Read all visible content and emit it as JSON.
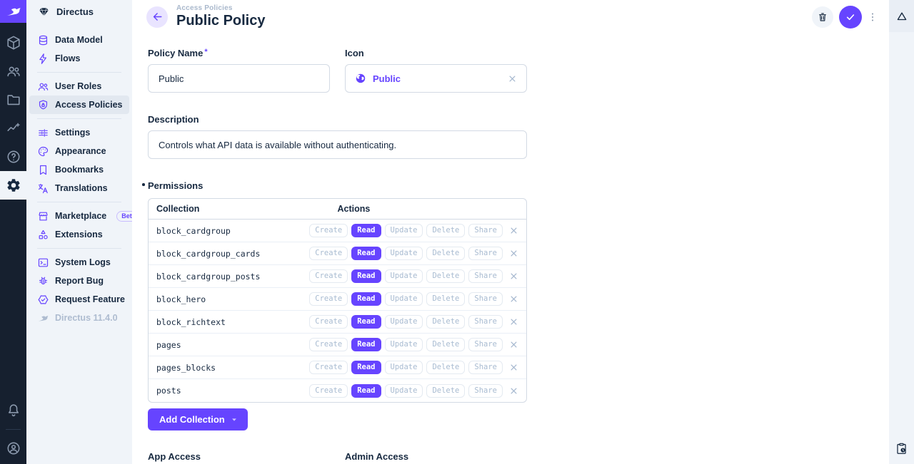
{
  "colors": {
    "accent": "#6644ff",
    "module_bar_bg": "#16202f",
    "sidebar_bg": "#f0f4f9",
    "selected_item_bg": "#e2e8f0",
    "text_dark": "#172940",
    "text_muted": "#a2b5cd",
    "border": "#d3dae4"
  },
  "module_bar": {
    "icons": [
      "directus-rabbit-logo",
      "content-cube",
      "user-directory",
      "file-library",
      "insights",
      "help",
      "settings-gear",
      "notifications-bell",
      "account-circle"
    ]
  },
  "sidebar": {
    "project_name": "Directus",
    "items": [
      {
        "label": "Data Model"
      },
      {
        "label": "Flows"
      },
      {
        "label": "User Roles"
      },
      {
        "label": "Access Policies",
        "selected": true
      },
      {
        "label": "Settings"
      },
      {
        "label": "Appearance"
      },
      {
        "label": "Bookmarks"
      },
      {
        "label": "Translations"
      },
      {
        "label": "Marketplace",
        "badge": "Beta"
      },
      {
        "label": "Extensions"
      },
      {
        "label": "System Logs"
      },
      {
        "label": "Report Bug"
      },
      {
        "label": "Request Feature"
      }
    ],
    "version": "Directus 11.4.0"
  },
  "header": {
    "breadcrumb": "Access Policies",
    "title": "Public Policy",
    "buttons": [
      "delete",
      "save",
      "more-options"
    ]
  },
  "form": {
    "policy_name": {
      "label": "Policy Name",
      "required_mark": "*",
      "value": "Public"
    },
    "icon_field": {
      "label": "Icon",
      "value": "Public",
      "icon": "public-globe"
    },
    "description": {
      "label": "Description",
      "value": "Controls what API data is available without authenticating."
    },
    "permissions": {
      "label": "Permissions",
      "columns": {
        "collection": "Collection",
        "actions": "Actions"
      },
      "actions": [
        "Create",
        "Read",
        "Update",
        "Delete",
        "Share"
      ],
      "active_action": "Read",
      "rows": [
        "block_cardgroup",
        "block_cardgroup_cards",
        "block_cardgroup_posts",
        "block_hero",
        "block_richtext",
        "pages",
        "pages_blocks",
        "posts"
      ]
    },
    "add_collection_label": "Add Collection",
    "app_access_label": "App Access",
    "admin_access_label": "Admin Access"
  },
  "right_sidebar": {
    "icons": [
      "triangle-logo",
      "revisions-clipboard-clock"
    ]
  }
}
